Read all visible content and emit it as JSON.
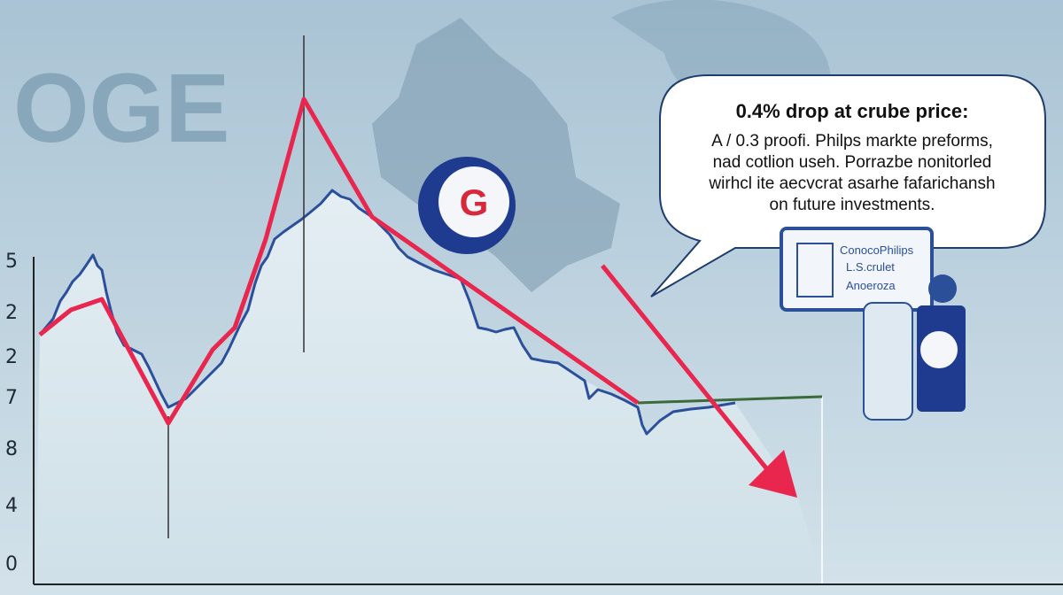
{
  "background_text": "OGE",
  "axis_labels": [
    "5",
    "2",
    "2",
    "7",
    "8",
    "4",
    "0"
  ],
  "logo": "G",
  "bubble": {
    "title": "0.4% drop at crube price:",
    "lines": [
      "A / 0.3 proofi. Philps markte preforms,",
      "nad cotlion useh. Porrazbe nonitorled",
      "wirhcl ite aecvcrat asarhe fafarichansh",
      "on future investments."
    ]
  },
  "sign": {
    "lines": [
      "ConocoPhilips",
      "L.S.crulet",
      "Anoeroza"
    ]
  }
}
